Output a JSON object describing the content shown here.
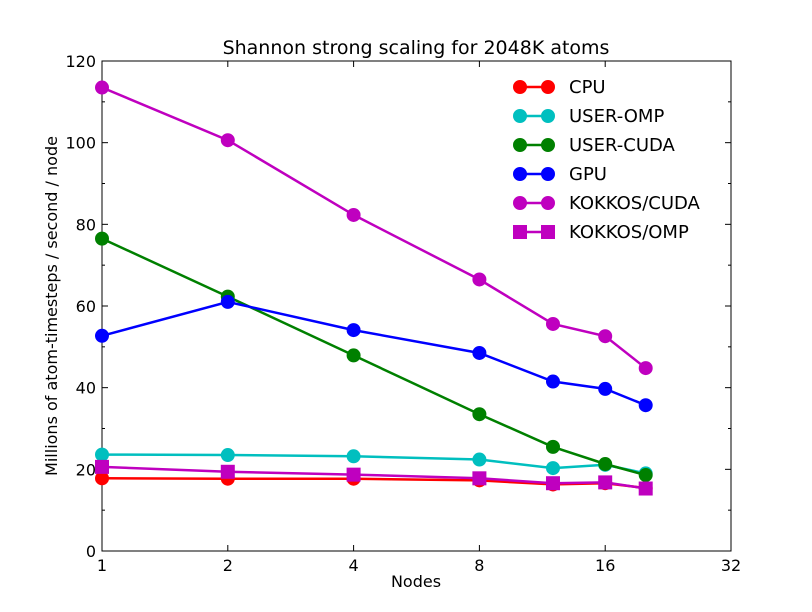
{
  "chart_data": {
    "type": "line",
    "title": "Shannon strong scaling for 2048K atoms",
    "xlabel": "Nodes",
    "ylabel": "Millions of atom-timesteps / second / node",
    "xscale": "log2",
    "xlim": [
      1,
      32
    ],
    "ylim": [
      0,
      120
    ],
    "xticks": [
      1,
      2,
      4,
      8,
      16,
      32
    ],
    "xtick_labels": [
      "1",
      "2",
      "4",
      "8",
      "16",
      "32"
    ],
    "yticks": [
      0,
      20,
      40,
      60,
      80,
      100,
      120
    ],
    "ytick_labels": [
      "0",
      "20",
      "40",
      "60",
      "80",
      "100",
      "120"
    ],
    "grid": false,
    "legend_position": "top-right",
    "series": [
      {
        "name": "CPU",
        "color": "#ff0000",
        "marker": "circle",
        "x": [
          1,
          2,
          4,
          8,
          12,
          16,
          20
        ],
        "y": [
          17.8,
          17.7,
          17.7,
          17.3,
          16.3,
          16.6,
          15.4
        ]
      },
      {
        "name": "USER-OMP",
        "color": "#00bfbf",
        "marker": "circle",
        "x": [
          1,
          2,
          4,
          8,
          12,
          16,
          20
        ],
        "y": [
          23.6,
          23.5,
          23.2,
          22.4,
          20.3,
          21.1,
          19.0
        ]
      },
      {
        "name": "USER-CUDA",
        "color": "#008000",
        "marker": "circle",
        "x": [
          1,
          2,
          4,
          8,
          12,
          16,
          20
        ],
        "y": [
          76.5,
          62.3,
          47.9,
          33.5,
          25.5,
          21.3,
          18.6
        ]
      },
      {
        "name": "GPU",
        "color": "#0000ff",
        "marker": "circle",
        "x": [
          1,
          2,
          4,
          8,
          12,
          16,
          20
        ],
        "y": [
          52.7,
          61.0,
          54.1,
          48.5,
          41.5,
          39.7,
          35.7
        ]
      },
      {
        "name": "KOKKOS/CUDA",
        "color": "#bf00bf",
        "marker": "circle",
        "x": [
          1,
          2,
          4,
          8,
          12,
          16,
          20
        ],
        "y": [
          113.5,
          100.6,
          82.3,
          66.5,
          55.6,
          52.6,
          44.8
        ]
      },
      {
        "name": "KOKKOS/OMP",
        "color": "#bf00bf",
        "marker": "square",
        "x": [
          1,
          2,
          4,
          8,
          12,
          16,
          20
        ],
        "y": [
          20.6,
          19.4,
          18.7,
          17.8,
          16.6,
          16.8,
          15.3
        ]
      }
    ]
  }
}
